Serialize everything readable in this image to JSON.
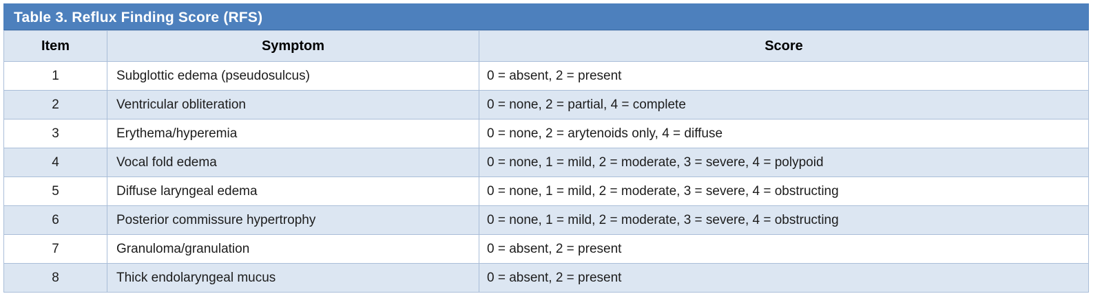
{
  "table": {
    "title": "Table 3. Reflux Finding Score (RFS)",
    "columns": [
      "Item",
      "Symptom",
      "Score"
    ],
    "rows": [
      {
        "item": "1",
        "symptom": "Subglottic edema (pseudosulcus)",
        "score": "0 = absent, 2 = present"
      },
      {
        "item": "2",
        "symptom": "Ventricular obliteration",
        "score": "0 = none, 2 = partial, 4 = complete"
      },
      {
        "item": "3",
        "symptom": "Erythema/hyperemia",
        "score": "0 = none, 2 = arytenoids only, 4 = diffuse"
      },
      {
        "item": "4",
        "symptom": "Vocal fold edema",
        "score": "0 = none, 1 = mild, 2 = moderate, 3 = severe, 4 = polypoid"
      },
      {
        "item": "5",
        "symptom": "Diffuse laryngeal edema",
        "score": "0 = none, 1 = mild, 2 = moderate, 3 = severe, 4 = obstructing"
      },
      {
        "item": "6",
        "symptom": "Posterior commissure hypertrophy",
        "score": "0 = none, 1 = mild, 2 = moderate, 3 = severe, 4 = obstructing"
      },
      {
        "item": "7",
        "symptom": "Granuloma/granulation",
        "score": "0 = absent, 2 = present"
      },
      {
        "item": "8",
        "symptom": "Thick endolaryngeal mucus",
        "score": "0 = absent, 2 = present"
      }
    ],
    "colors": {
      "title_bg": "#4d80bd",
      "title_text": "#ffffff",
      "header_bg": "#dce6f2",
      "row_bg": "#ffffff",
      "row_alt_bg": "#dce6f2",
      "border": "#a9bdd8",
      "text": "#1c1c1c"
    }
  }
}
